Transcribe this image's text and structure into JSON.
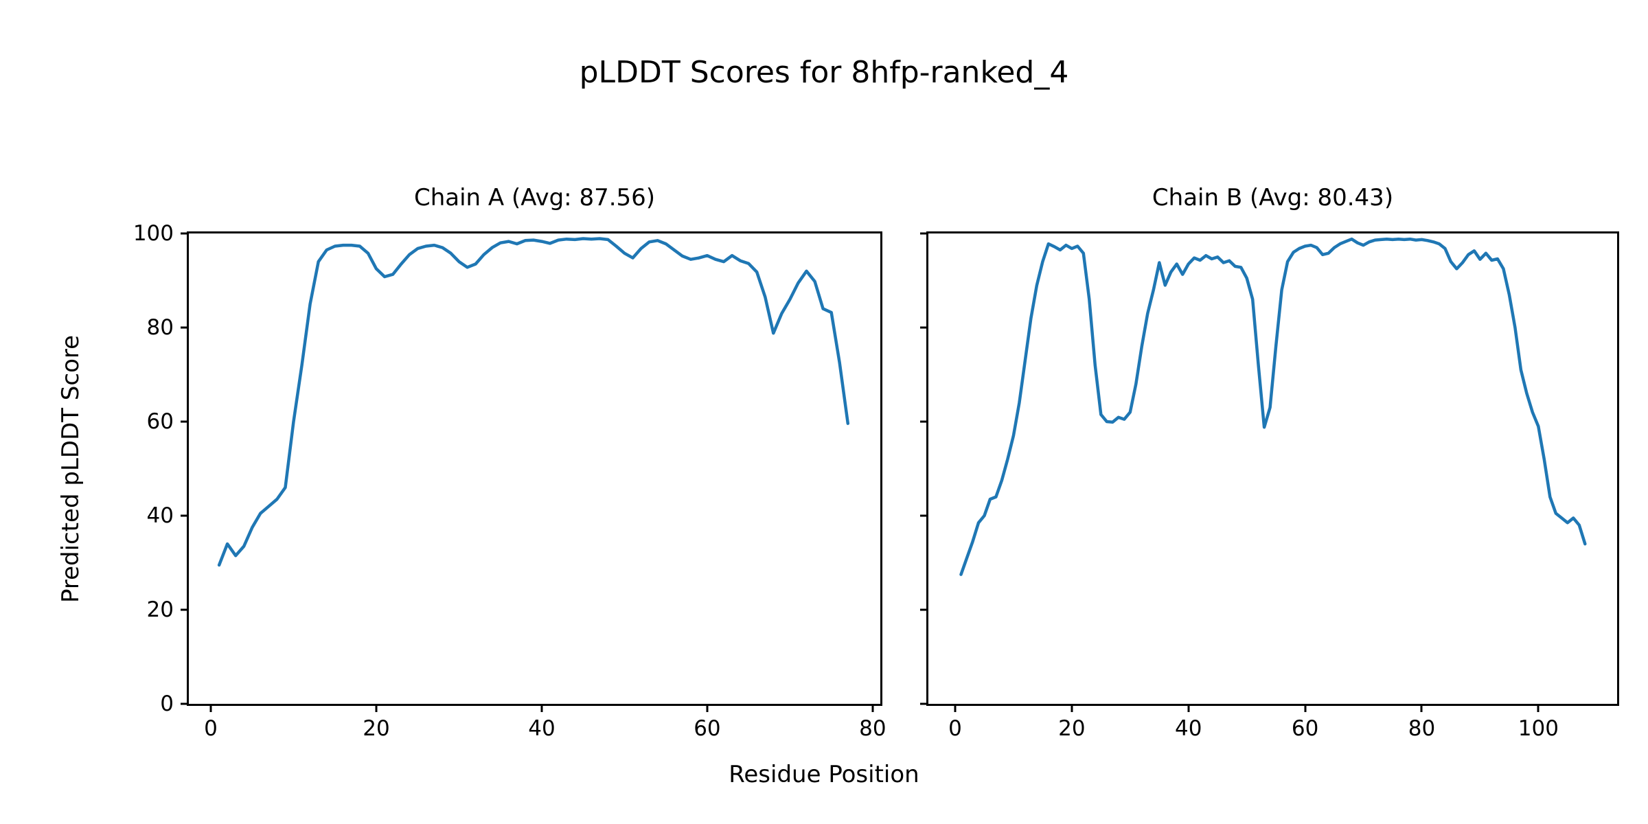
{
  "figure": {
    "suptitle": "pLDDT Scores for 8hfp-ranked_4",
    "xlabel": "Residue Position",
    "ylabel": "Predicted pLDDT Score",
    "background_color": "#ffffff",
    "text_color": "#000000"
  },
  "chart_data": [
    {
      "type": "line",
      "title": "Chain A (Avg: 87.56)",
      "series_name": "Chain A pLDDT",
      "average": 87.56,
      "line_color": "#1f77b4",
      "x_start": 1,
      "xlim": [
        -2.66,
        80.92
      ],
      "ylim": [
        0,
        100
      ],
      "xticks": [
        0,
        20,
        40,
        60,
        80
      ],
      "yticks": [
        0,
        20,
        40,
        60,
        80,
        100
      ],
      "show_ytick_labels": true,
      "grid": false,
      "values": [
        29.5,
        34,
        31.5,
        33.5,
        37.5,
        40.5,
        42,
        43.5,
        46,
        60,
        72,
        85,
        94,
        96.5,
        97.3,
        97.5,
        97.5,
        97.3,
        95.8,
        92.5,
        90.8,
        91.3,
        93.5,
        95.5,
        96.8,
        97.3,
        97.5,
        97,
        95.8,
        94,
        92.8,
        93.5,
        95.5,
        97,
        98,
        98.3,
        97.8,
        98.5,
        98.6,
        98.3,
        97.9,
        98.6,
        98.8,
        98.7,
        98.9,
        98.8,
        98.9,
        98.7,
        97.3,
        95.8,
        94.8,
        96.8,
        98.2,
        98.5,
        97.8,
        96.5,
        95.2,
        94.5,
        94.8,
        95.3,
        94.5,
        94,
        95.3,
        94.2,
        93.6,
        91.8,
        86.5,
        78.8,
        83,
        86,
        89.5,
        92,
        89.8,
        84,
        83.2,
        72.5,
        59.6
      ]
    },
    {
      "type": "line",
      "title": "Chain B (Avg: 80.43)",
      "series_name": "Chain B pLDDT",
      "average": 80.43,
      "line_color": "#1f77b4",
      "x_start": 1,
      "xlim": [
        -4.59,
        113.5
      ],
      "ylim": [
        0,
        100
      ],
      "xticks": [
        0,
        20,
        40,
        60,
        80,
        100
      ],
      "yticks": [
        0,
        20,
        40,
        60,
        80,
        100
      ],
      "show_ytick_labels": false,
      "grid": false,
      "values": [
        27.5,
        31,
        34.5,
        38.5,
        40,
        43.5,
        44,
        47.5,
        52,
        57,
        64,
        73,
        82,
        89,
        94,
        97.8,
        97.2,
        96.5,
        97.5,
        96.8,
        97.3,
        95.8,
        86,
        72,
        61.5,
        60,
        59.9,
        60.9,
        60.5,
        62,
        68,
        76,
        83,
        88,
        93.8,
        89,
        91.8,
        93.5,
        91.3,
        93.5,
        94.8,
        94.3,
        95.3,
        94.6,
        95,
        93.8,
        94.2,
        93,
        92.8,
        90.5,
        86,
        72,
        58.8,
        63,
        76,
        88,
        94,
        96,
        96.8,
        97.3,
        97.5,
        97,
        95.5,
        95.8,
        97,
        97.8,
        98.3,
        98.8,
        98,
        97.5,
        98.2,
        98.6,
        98.7,
        98.8,
        98.7,
        98.8,
        98.7,
        98.8,
        98.6,
        98.7,
        98.5,
        98.2,
        97.8,
        96.8,
        94,
        92.5,
        93.8,
        95.5,
        96.3,
        94.5,
        95.8,
        94.3,
        94.6,
        92.5,
        87,
        80,
        71,
        66,
        62,
        59,
        52,
        44,
        40.5,
        39.5,
        38.5,
        39.5,
        38,
        34
      ]
    }
  ]
}
